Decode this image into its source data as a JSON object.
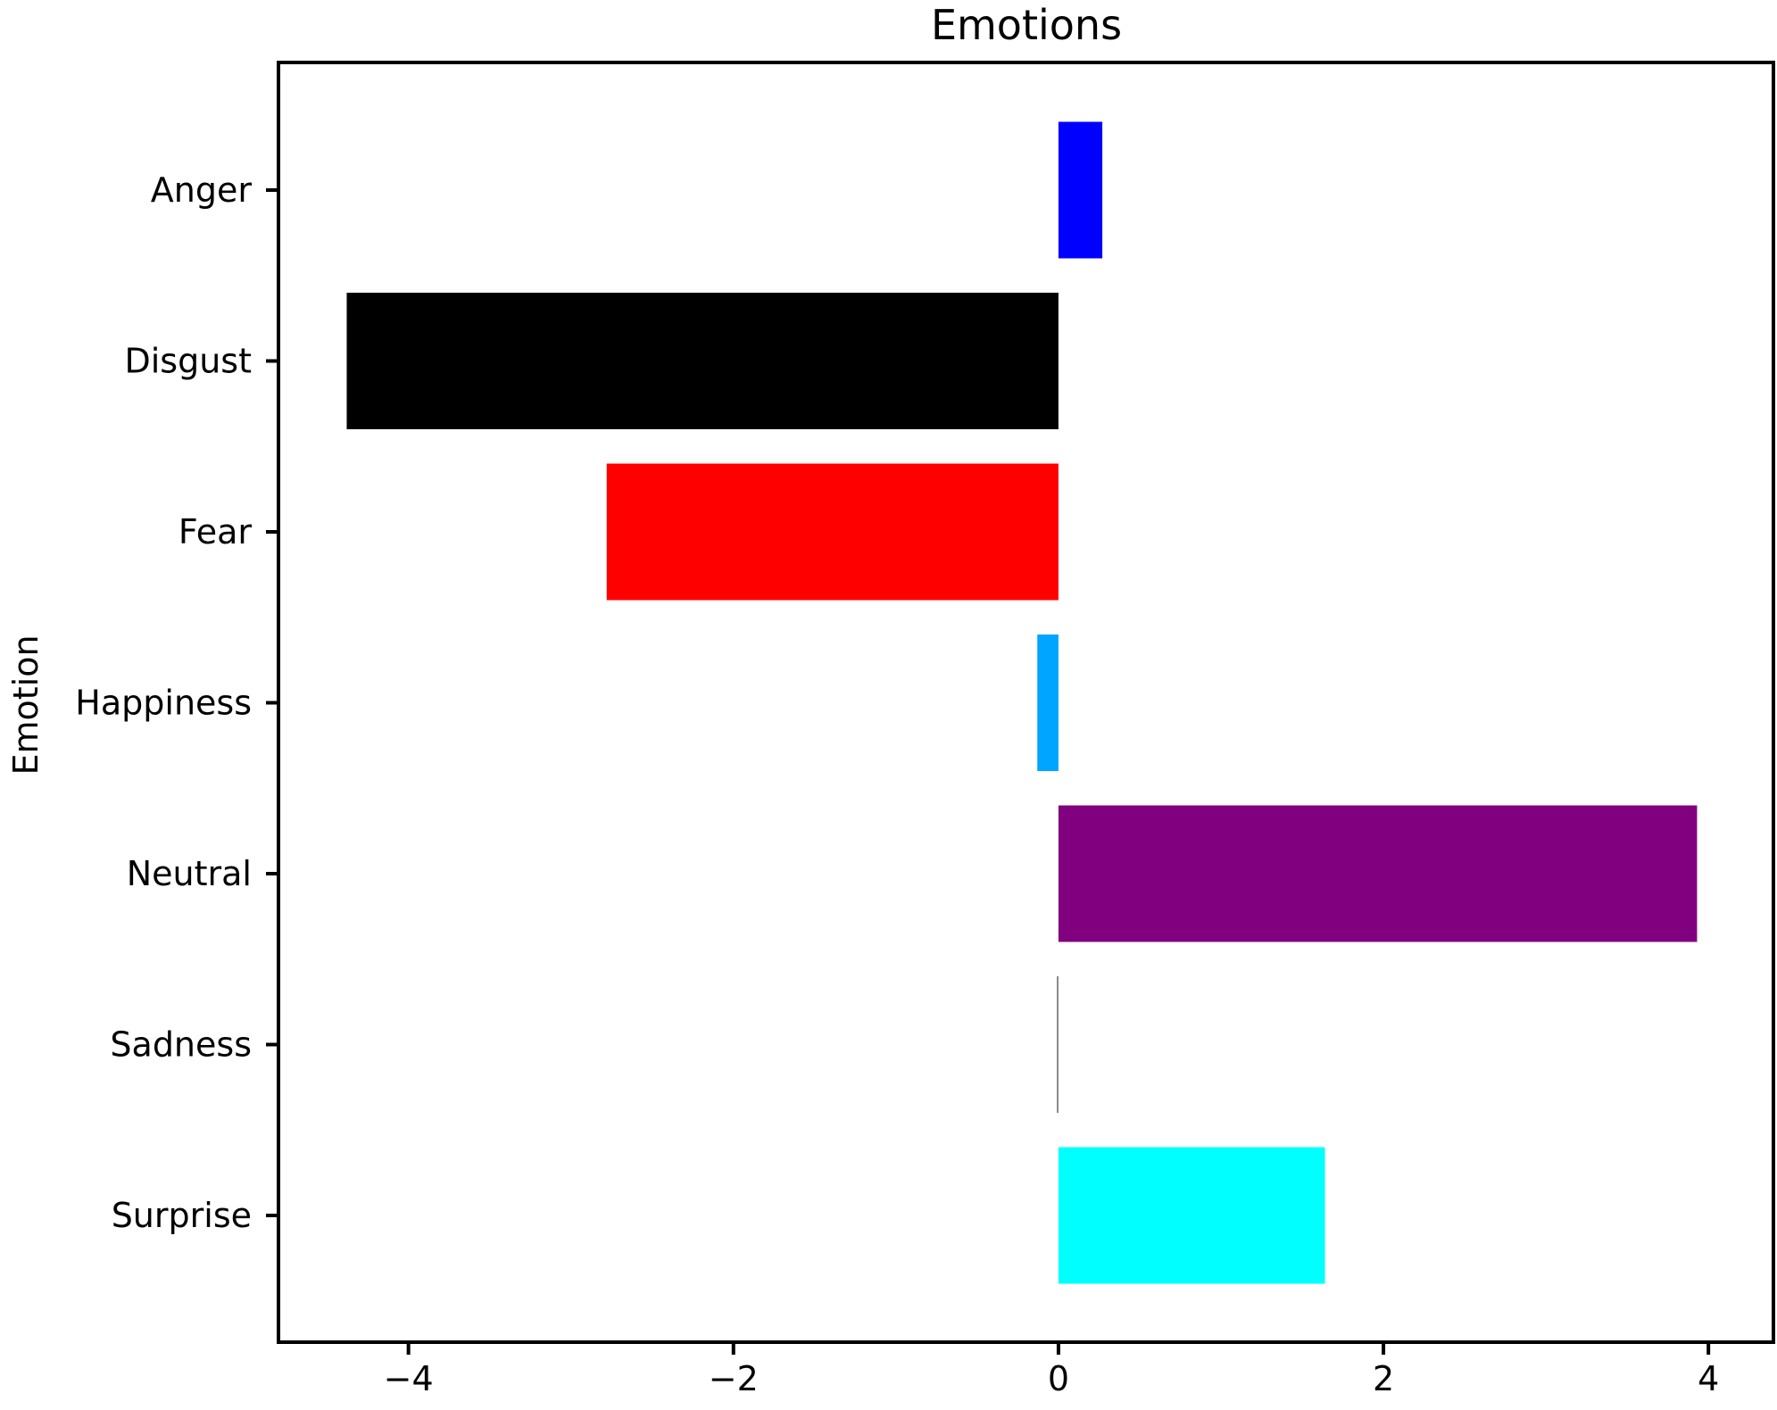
{
  "chart_data": {
    "type": "bar",
    "orientation": "horizontal",
    "title": "Emotions",
    "xlabel": "",
    "ylabel": "Emotion",
    "xlim": [
      -4.8,
      4.4
    ],
    "xticks": [
      -4,
      -2,
      0,
      2,
      4
    ],
    "xtick_labels": [
      "−4",
      "−2",
      "0",
      "2",
      "4"
    ],
    "grid": false,
    "legend": "none",
    "categories": [
      "Anger",
      "Disgust",
      "Fear",
      "Happiness",
      "Neutral",
      "Sadness",
      "Surprise"
    ],
    "values": [
      0.27,
      -4.38,
      -2.78,
      -0.13,
      3.93,
      -0.01,
      1.64
    ],
    "colors": [
      "#0000ff",
      "#000000",
      "#ff0000",
      "#00a5ff",
      "#800080",
      "#808080",
      "#00ffff"
    ]
  }
}
